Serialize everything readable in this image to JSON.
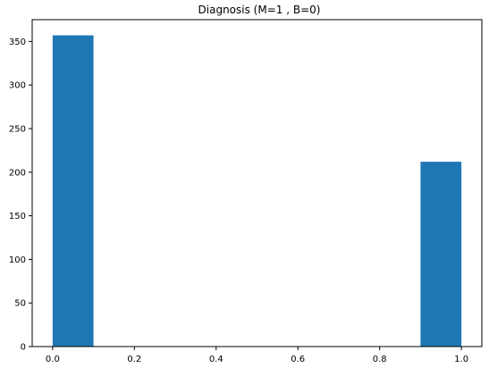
{
  "chart_data": {
    "type": "bar",
    "title": "Diagnosis (M=1 , B=0)",
    "xlabel": "",
    "ylabel": "",
    "bins": [
      {
        "x0": 0.0,
        "x1": 0.1,
        "count": 357
      },
      {
        "x0": 0.1,
        "x1": 0.2,
        "count": 0
      },
      {
        "x0": 0.2,
        "x1": 0.3,
        "count": 0
      },
      {
        "x0": 0.3,
        "x1": 0.4,
        "count": 0
      },
      {
        "x0": 0.4,
        "x1": 0.5,
        "count": 0
      },
      {
        "x0": 0.5,
        "x1": 0.6,
        "count": 0
      },
      {
        "x0": 0.6,
        "x1": 0.7,
        "count": 0
      },
      {
        "x0": 0.7,
        "x1": 0.8,
        "count": 0
      },
      {
        "x0": 0.8,
        "x1": 0.9,
        "count": 0
      },
      {
        "x0": 0.9,
        "x1": 1.0,
        "count": 212
      }
    ],
    "xlim": [
      -0.05,
      1.05
    ],
    "ylim": [
      0,
      375
    ],
    "xticks": [
      "0.0",
      "0.2",
      "0.4",
      "0.6",
      "0.8",
      "1.0"
    ],
    "yticks": [
      "0",
      "50",
      "100",
      "150",
      "200",
      "250",
      "300",
      "350"
    ],
    "bar_color": "#1f77b4",
    "grid": false,
    "legend": "none"
  }
}
